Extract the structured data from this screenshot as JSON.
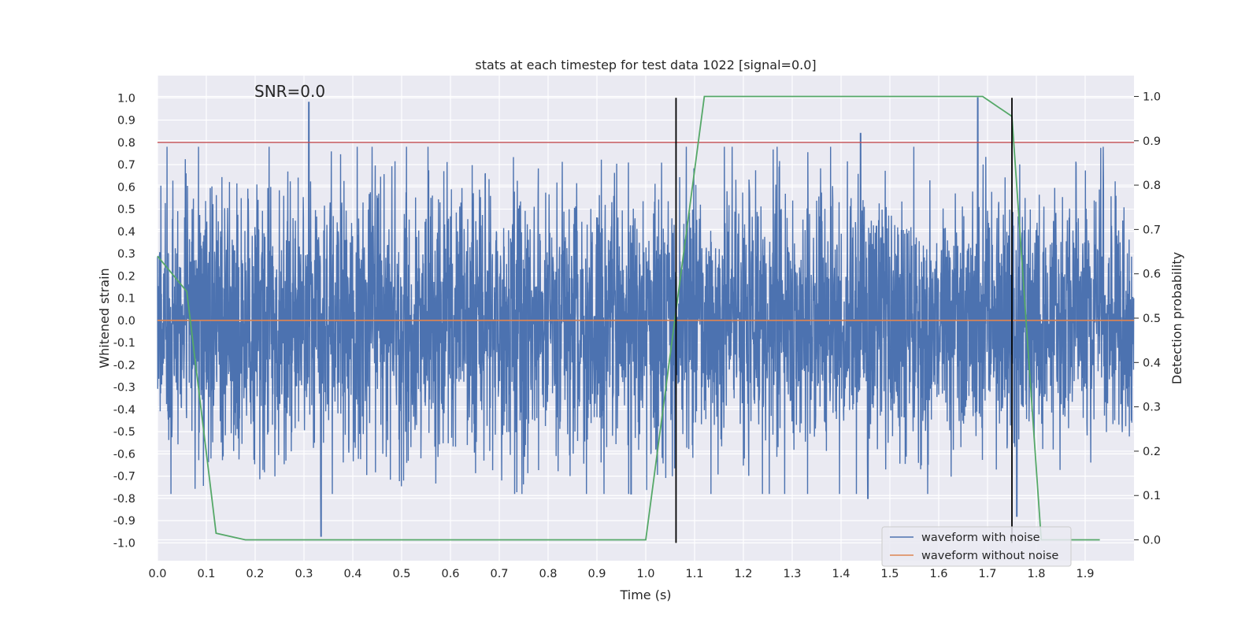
{
  "chart_data": {
    "type": "line",
    "title": "stats at each timestep for test data 1022 [signal=0.0]",
    "xlabel": "Time (s)",
    "ylabel": "Whitened strain",
    "y2label": "Detection probability",
    "annotation": "SNR=0.0",
    "xlim": [
      0.0,
      2.0
    ],
    "ylim": [
      -1.08,
      1.1
    ],
    "y2lim": [
      -0.047,
      1.047
    ],
    "xticks": [
      "0.0",
      "0.1",
      "0.2",
      "0.3",
      "0.4",
      "0.5",
      "0.6",
      "0.7",
      "0.8",
      "0.9",
      "1.0",
      "1.1",
      "1.2",
      "1.3",
      "1.4",
      "1.5",
      "1.6",
      "1.7",
      "1.8",
      "1.9"
    ],
    "yticks": [
      "1.0",
      "0.9",
      "0.8",
      "0.7",
      "0.6",
      "0.5",
      "0.4",
      "0.3",
      "0.2",
      "0.1",
      "0.0",
      "-0.1",
      "-0.2",
      "-0.3",
      "-0.4",
      "-0.5",
      "-0.6",
      "-0.7",
      "-0.8",
      "-0.9",
      "-1.0"
    ],
    "y2ticks": [
      "1.0",
      "0.9",
      "0.8",
      "0.7",
      "0.6",
      "0.5",
      "0.4",
      "0.3",
      "0.2",
      "0.1",
      "0.0"
    ],
    "grid": true,
    "legend_position": "bottom-right",
    "series": [
      {
        "name": "waveform with noise",
        "color": "#4c72b0",
        "kind": "noise",
        "amplitude": 0.3,
        "samples": 4000,
        "spikes": [
          [
            0.31,
            0.98
          ],
          [
            0.335,
            -0.97
          ],
          [
            1.44,
            0.84
          ],
          [
            1.68,
            1.0
          ],
          [
            1.76,
            -0.88
          ],
          [
            0.97,
            -0.78
          ],
          [
            1.455,
            -0.8
          ]
        ]
      },
      {
        "name": "waveform without noise",
        "color": "#dd8452",
        "y": 0.0
      }
    ],
    "threshold": {
      "y": 0.8,
      "color": "#c44e52"
    },
    "detection_probability": {
      "color": "#55a868",
      "x": [
        0.0,
        0.06,
        0.12,
        0.18,
        0.24,
        0.3,
        0.36,
        0.42,
        0.48,
        0.54,
        0.6,
        0.66,
        0.72,
        0.78,
        0.84,
        0.9,
        0.96,
        1.0,
        1.12,
        1.18,
        1.24,
        1.3,
        1.36,
        1.42,
        1.48,
        1.54,
        1.6,
        1.66,
        1.69,
        1.75,
        1.81,
        1.87,
        1.93
      ],
      "y": [
        0.64,
        0.56,
        0.015,
        0.0,
        0.0,
        0.0,
        0.0,
        0.0,
        0.0,
        0.0,
        0.0,
        0.0,
        0.0,
        0.0,
        0.0,
        0.0,
        0.0,
        0.0,
        1.0,
        1.0,
        1.0,
        1.0,
        1.0,
        1.0,
        1.0,
        1.0,
        1.0,
        1.0,
        1.0,
        0.955,
        0.0,
        0.0,
        0.0
      ]
    },
    "vlines": [
      {
        "x": 1.062,
        "color": "#000000"
      },
      {
        "x": 1.75,
        "color": "#000000"
      }
    ]
  }
}
